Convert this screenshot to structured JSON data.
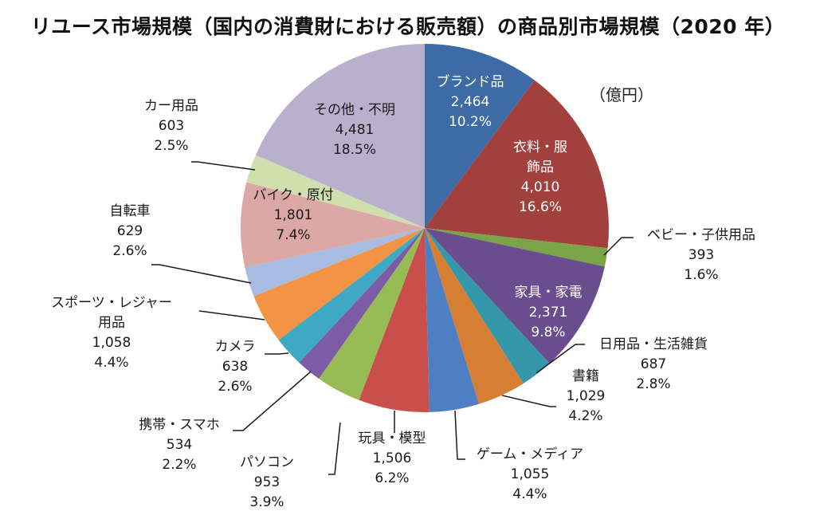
{
  "chart_data": {
    "type": "pie",
    "title": "リユース市場規模（国内の消費財における販売額）の商品別市場規模（2020 年）",
    "unit_label": "（億円）",
    "start": "top",
    "direction": "clockwise",
    "slices": [
      {
        "label": "ブランド品",
        "value": 2464,
        "value_text": "2,464",
        "pct": "10.2%",
        "color": "#3e6aa6"
      },
      {
        "label": "衣料・服飾品",
        "label_lines": [
          "衣料・服",
          "飾品"
        ],
        "value": 4010,
        "value_text": "4,010",
        "pct": "16.6%",
        "color": "#a2403e"
      },
      {
        "label": "ベビー・子供用品",
        "value": 393,
        "value_text": "393",
        "pct": "1.6%",
        "color": "#7ba348"
      },
      {
        "label": "家具・家電",
        "value": 2371,
        "value_text": "2,371",
        "pct": "9.8%",
        "color": "#6a4d8f"
      },
      {
        "label": "日用品・生活雑貨",
        "value": 687,
        "value_text": "687",
        "pct": "2.8%",
        "color": "#3597aa"
      },
      {
        "label": "書籍",
        "value": 1029,
        "value_text": "1,029",
        "pct": "4.2%",
        "color": "#d67e34"
      },
      {
        "label": "ゲーム・メディア",
        "value": 1055,
        "value_text": "1,055",
        "pct": "4.4%",
        "color": "#4e7fc4"
      },
      {
        "label": "玩具・模型",
        "value": 1506,
        "value_text": "1,506",
        "pct": "6.2%",
        "color": "#c94f4c"
      },
      {
        "label": "パソコン",
        "value": 953,
        "value_text": "953",
        "pct": "3.9%",
        "color": "#97bb55"
      },
      {
        "label": "携帯・スマホ",
        "value": 534,
        "value_text": "534",
        "pct": "2.2%",
        "color": "#7d5ca6"
      },
      {
        "label": "カメラ",
        "value": 638,
        "value_text": "638",
        "pct": "2.6%",
        "color": "#3fa9c4"
      },
      {
        "label": "スポーツ・レジャー用品",
        "label_lines": [
          "スポーツ・レジャー",
          "用品"
        ],
        "value": 1058,
        "value_text": "1,058",
        "pct": "4.4%",
        "color": "#f29443"
      },
      {
        "label": "自転車",
        "value": 629,
        "value_text": "629",
        "pct": "2.6%",
        "color": "#a7bce0"
      },
      {
        "label": "バイク・原付",
        "value": 1801,
        "value_text": "1,801",
        "pct": "7.4%",
        "color": "#dba8a6"
      },
      {
        "label": "カー用品",
        "value": 603,
        "value_text": "603",
        "pct": "2.5%",
        "color": "#cfdfae"
      },
      {
        "label": "その他・不明",
        "value": 4481,
        "value_text": "4,481",
        "pct": "18.5%",
        "color": "#b8b0cd"
      }
    ]
  }
}
